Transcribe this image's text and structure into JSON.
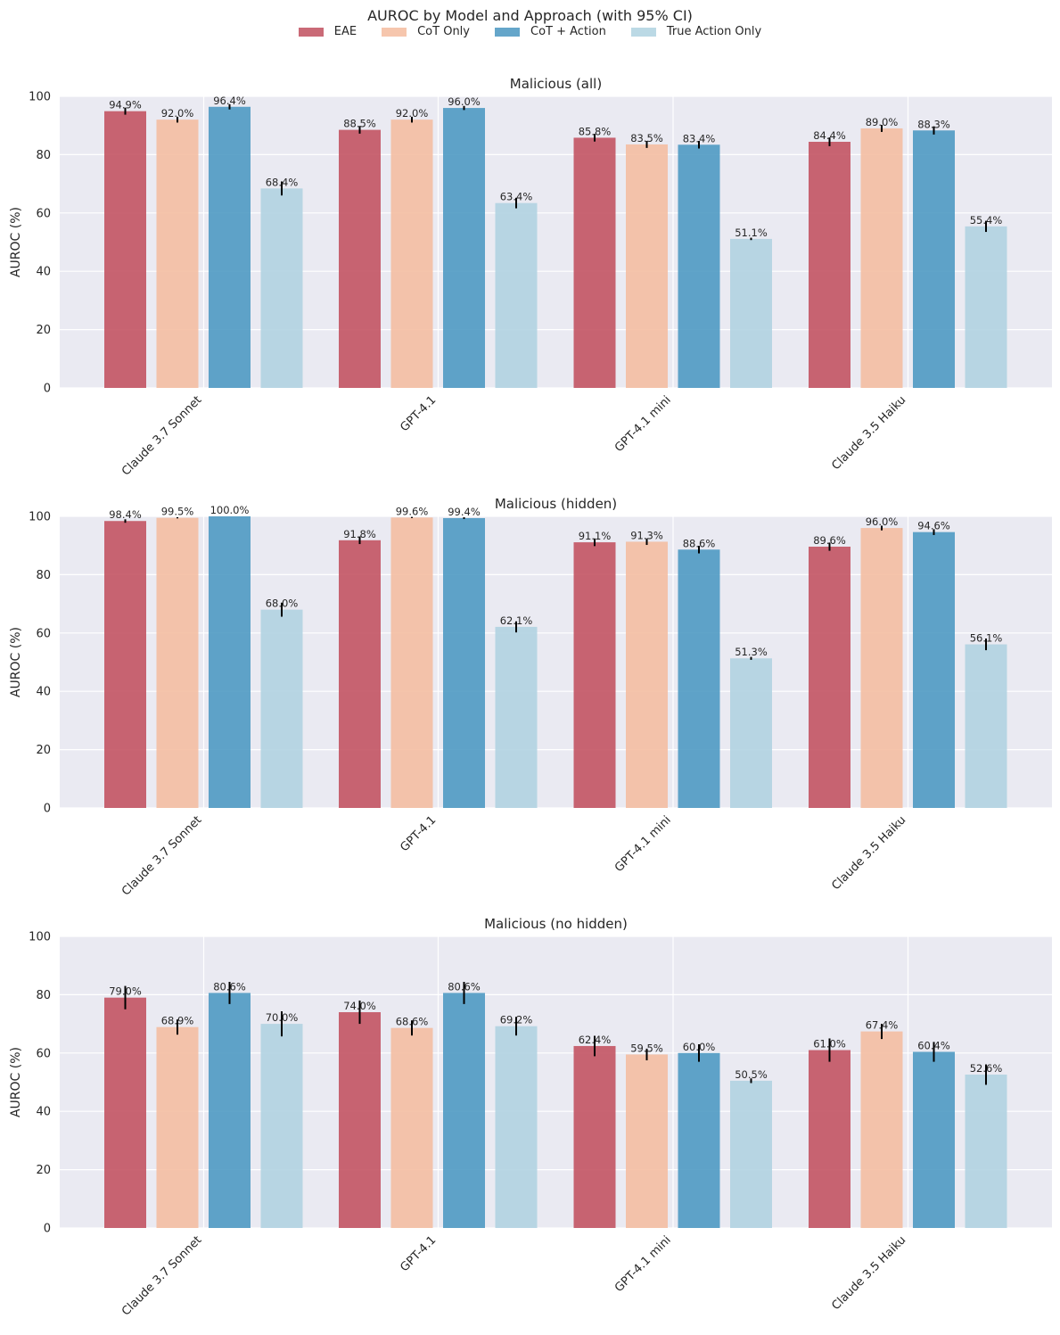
{
  "suptitle": "AUROC by Model and Approach (with 95% CI)",
  "legend": [
    {
      "label": "EAE",
      "color": "#c1505f"
    },
    {
      "label": "CoT Only",
      "color": "#f4bc9f"
    },
    {
      "label": "CoT + Action",
      "color": "#4a97c1"
    },
    {
      "label": "True Action Only",
      "color": "#afd2e0"
    }
  ],
  "chart_data": [
    {
      "type": "bar",
      "title": "Malicious (all)",
      "ylabel": "AUROC (%)",
      "ylim": [
        0,
        100
      ],
      "yticks": [
        "0",
        "20",
        "40",
        "60",
        "80",
        "100"
      ],
      "categories": [
        "Claude 3.7 Sonnet",
        "GPT-4.1",
        "GPT-4.1 mini",
        "Claude 3.5 Haiku"
      ],
      "series": [
        {
          "name": "EAE",
          "values": [
            94.9,
            88.5,
            85.8,
            84.4
          ],
          "labels": [
            "94.9%",
            "88.5%",
            "85.8%",
            "84.4%"
          ],
          "err": [
            1.2,
            1.3,
            1.3,
            1.5
          ]
        },
        {
          "name": "CoT Only",
          "values": [
            92.0,
            92.0,
            83.5,
            89.0
          ],
          "labels": [
            "92.0%",
            "92.0%",
            "83.5%",
            "89.0%"
          ],
          "err": [
            1.0,
            1.0,
            1.2,
            1.2
          ]
        },
        {
          "name": "CoT + Action",
          "values": [
            96.4,
            96.0,
            83.4,
            88.3
          ],
          "labels": [
            "96.4%",
            "96.0%",
            "83.4%",
            "88.3%"
          ],
          "err": [
            0.9,
            0.7,
            1.3,
            1.4
          ]
        },
        {
          "name": "True Action Only",
          "values": [
            68.4,
            63.4,
            51.1,
            55.4
          ],
          "labels": [
            "68.4%",
            "63.4%",
            "51.1%",
            "55.4%"
          ],
          "err": [
            2.4,
            1.8,
            0.4,
            1.9
          ]
        }
      ]
    },
    {
      "type": "bar",
      "title": "Malicious (hidden)",
      "ylabel": "AUROC (%)",
      "ylim": [
        0,
        100
      ],
      "yticks": [
        "0",
        "20",
        "40",
        "60",
        "80",
        "100"
      ],
      "categories": [
        "Claude 3.7 Sonnet",
        "GPT-4.1",
        "GPT-4.1 mini",
        "Claude 3.5 Haiku"
      ],
      "series": [
        {
          "name": "EAE",
          "values": [
            98.4,
            91.8,
            91.1,
            89.6
          ],
          "labels": [
            "98.4%",
            "91.8%",
            "91.1%",
            "89.6%"
          ],
          "err": [
            0.6,
            1.3,
            1.3,
            1.4
          ]
        },
        {
          "name": "CoT Only",
          "values": [
            99.5,
            99.6,
            91.3,
            96.0
          ],
          "labels": [
            "99.5%",
            "99.6%",
            "91.3%",
            "96.0%"
          ],
          "err": [
            0.2,
            0.2,
            1.1,
            0.8
          ]
        },
        {
          "name": "CoT + Action",
          "values": [
            100.0,
            99.4,
            88.6,
            94.6
          ],
          "labels": [
            "100.0%",
            "99.4%",
            "88.6%",
            "94.6%"
          ],
          "err": [
            0.0,
            0.3,
            1.3,
            1.0
          ]
        },
        {
          "name": "True Action Only",
          "values": [
            68.0,
            62.1,
            51.3,
            56.1
          ],
          "labels": [
            "68.0%",
            "62.1%",
            "51.3%",
            "56.1%"
          ],
          "err": [
            2.4,
            1.9,
            0.5,
            2.0
          ]
        }
      ]
    },
    {
      "type": "bar",
      "title": "Malicious (no hidden)",
      "ylabel": "AUROC (%)",
      "ylim": [
        0,
        100
      ],
      "yticks": [
        "0",
        "20",
        "40",
        "60",
        "80",
        "100"
      ],
      "categories": [
        "Claude 3.7 Sonnet",
        "GPT-4.1",
        "GPT-4.1 mini",
        "Claude 3.5 Haiku"
      ],
      "series": [
        {
          "name": "EAE",
          "values": [
            79.0,
            74.0,
            62.4,
            61.0
          ],
          "labels": [
            "79.0%",
            "74.0%",
            "62.4%",
            "61.0%"
          ],
          "err": [
            4.0,
            4.0,
            3.5,
            4.0
          ]
        },
        {
          "name": "CoT Only",
          "values": [
            68.9,
            68.6,
            59.5,
            67.4
          ],
          "labels": [
            "68.9%",
            "68.6%",
            "59.5%",
            "67.4%"
          ],
          "err": [
            2.6,
            2.6,
            2.0,
            2.6
          ]
        },
        {
          "name": "CoT + Action",
          "values": [
            80.6,
            80.6,
            60.0,
            60.4
          ],
          "labels": [
            "80.6%",
            "80.6%",
            "60.0%",
            "60.4%"
          ],
          "err": [
            3.8,
            3.8,
            3.0,
            3.4
          ]
        },
        {
          "name": "True Action Only",
          "values": [
            70.0,
            69.2,
            50.5,
            52.6
          ],
          "labels": [
            "70.0%",
            "69.2%",
            "50.5%",
            "52.6%"
          ],
          "err": [
            4.3,
            3.2,
            0.8,
            3.5
          ]
        }
      ]
    }
  ]
}
